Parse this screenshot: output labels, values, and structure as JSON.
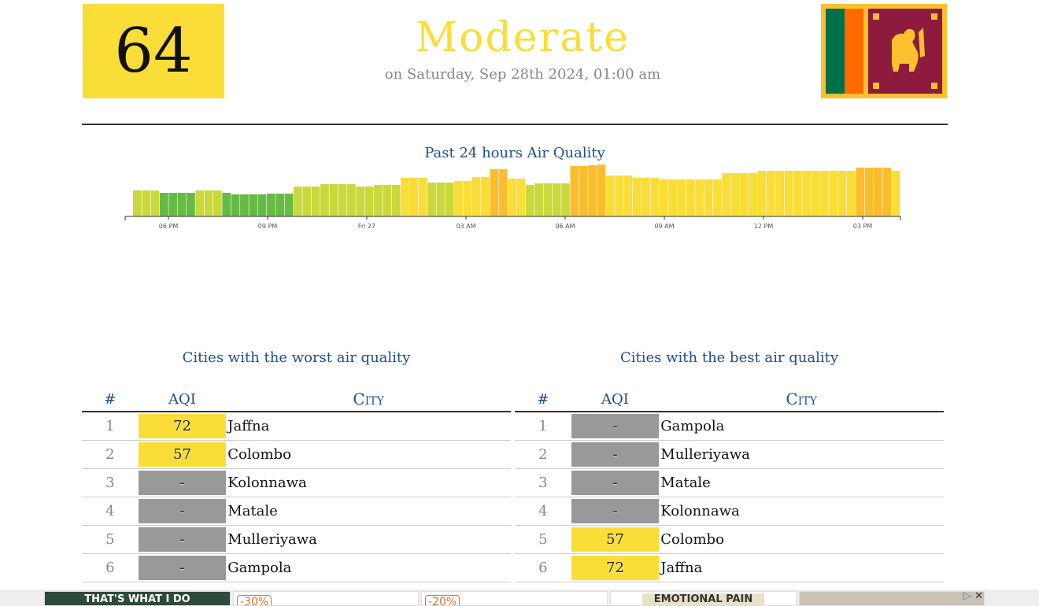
{
  "header": {
    "aqi_value": "64",
    "aqi_color": "#fadd36",
    "status": "Moderate",
    "date": "on Saturday, Sep 28th 2024, 01:00 am",
    "flag_icon": "sri-lanka-flag-icon"
  },
  "chart_data": {
    "type": "bar",
    "title": "Past 24 hours Air Quality",
    "x_tick_labels": [
      "06 PM",
      "09 PM",
      "Fri 27",
      "03 AM",
      "06 AM",
      "09 AM",
      "12 PM",
      "03 PM"
    ],
    "values": [
      33,
      33,
      33,
      30,
      30,
      30,
      30,
      33,
      33,
      33,
      30,
      28,
      28,
      28,
      28,
      29,
      29,
      29,
      38,
      38,
      38,
      41,
      41,
      41,
      41,
      38,
      38,
      40,
      40,
      40,
      49,
      49,
      49,
      43,
      43,
      43,
      45,
      45,
      50,
      50,
      60,
      60,
      48,
      48,
      40,
      42,
      42,
      42,
      42,
      64,
      64,
      65,
      66,
      52,
      52,
      52,
      49,
      49,
      49,
      47,
      47,
      47,
      47,
      47,
      47,
      47,
      55,
      55,
      55,
      55,
      58,
      58,
      58,
      58,
      58,
      58,
      58,
      58,
      58,
      58,
      58,
      62,
      62,
      62,
      62,
      58
    ],
    "colors_by_level": {
      "low": "#66bb44",
      "mid": "#c9d93c",
      "high": "#fadd36",
      "peak": "#fbbd2c"
    }
  },
  "worst": {
    "title": "Cities with the worst air quality",
    "headers": {
      "rank": "#",
      "aqi": "AQI",
      "city": "City"
    },
    "rows": [
      {
        "rank": "1",
        "aqi": "72",
        "city": "Jaffna",
        "color": "#fadd36"
      },
      {
        "rank": "2",
        "aqi": "57",
        "city": "Colombo",
        "color": "#fadd36"
      },
      {
        "rank": "3",
        "aqi": "-",
        "city": "Kolonnawa",
        "color": "#999999"
      },
      {
        "rank": "4",
        "aqi": "-",
        "city": "Matale",
        "color": "#999999"
      },
      {
        "rank": "5",
        "aqi": "-",
        "city": "Mulleriyawa",
        "color": "#999999"
      },
      {
        "rank": "6",
        "aqi": "-",
        "city": "Gampola",
        "color": "#999999"
      }
    ]
  },
  "best": {
    "title": "Cities with the best air quality",
    "headers": {
      "rank": "#",
      "aqi": "AQI",
      "city": "City"
    },
    "rows": [
      {
        "rank": "1",
        "aqi": "-",
        "city": "Gampola",
        "color": "#999999"
      },
      {
        "rank": "2",
        "aqi": "-",
        "city": "Mulleriyawa",
        "color": "#999999"
      },
      {
        "rank": "3",
        "aqi": "-",
        "city": "Matale",
        "color": "#999999"
      },
      {
        "rank": "4",
        "aqi": "-",
        "city": "Kolonnawa",
        "color": "#999999"
      },
      {
        "rank": "5",
        "aqi": "57",
        "city": "Colombo",
        "color": "#fadd36"
      },
      {
        "rank": "6",
        "aqi": "72",
        "city": "Jaffna",
        "color": "#fadd36"
      }
    ]
  },
  "ads": {
    "items": [
      {
        "text": "THAT'S WHAT I DO",
        "badge": ""
      },
      {
        "text": "",
        "badge": "-30%"
      },
      {
        "text": "",
        "badge": "-20%"
      },
      {
        "text": "EMOTIONAL PAIN CHART",
        "badge": ""
      },
      {
        "text": "",
        "badge": ""
      }
    ],
    "icons": [
      "ad-choices-icon",
      "close-icon"
    ]
  }
}
